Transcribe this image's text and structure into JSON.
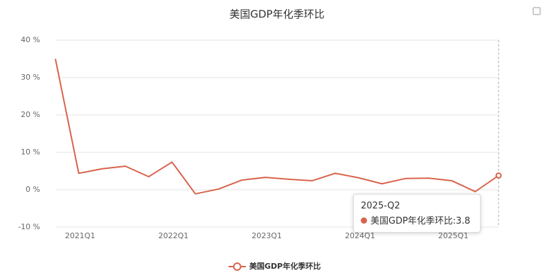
{
  "chart_data": {
    "type": "line",
    "title": "美国GDP年化季环比",
    "categories": [
      null,
      "2021Q1",
      null,
      null,
      null,
      "2022Q1",
      null,
      null,
      null,
      "2023Q1",
      null,
      null,
      null,
      "2024Q1",
      null,
      null,
      null,
      "2025Q1",
      null,
      null
    ],
    "series": [
      {
        "name": "美国GDP年化季环比",
        "color": "#d9634b",
        "values": [
          35.0,
          4.4,
          5.6,
          6.3,
          3.5,
          7.4,
          -1.1,
          0.2,
          2.6,
          3.3,
          2.8,
          2.4,
          4.4,
          3.2,
          1.6,
          3.0,
          3.1,
          2.4,
          -0.5,
          3.8
        ]
      }
    ],
    "ylim": [
      -10,
      40
    ],
    "yticks": [
      {
        "value": -10,
        "label": "-10 %"
      },
      {
        "value": 0,
        "label": "0 %"
      },
      {
        "value": 10,
        "label": "10 %"
      },
      {
        "value": 20,
        "label": "20 %"
      },
      {
        "value": 30,
        "label": "30 %"
      },
      {
        "value": 40,
        "label": "40 %"
      }
    ],
    "grid": true,
    "legend": "bottom",
    "tooltip": {
      "title": "2025-Q2",
      "text": "美国GDP年化季环比:3.8"
    }
  }
}
